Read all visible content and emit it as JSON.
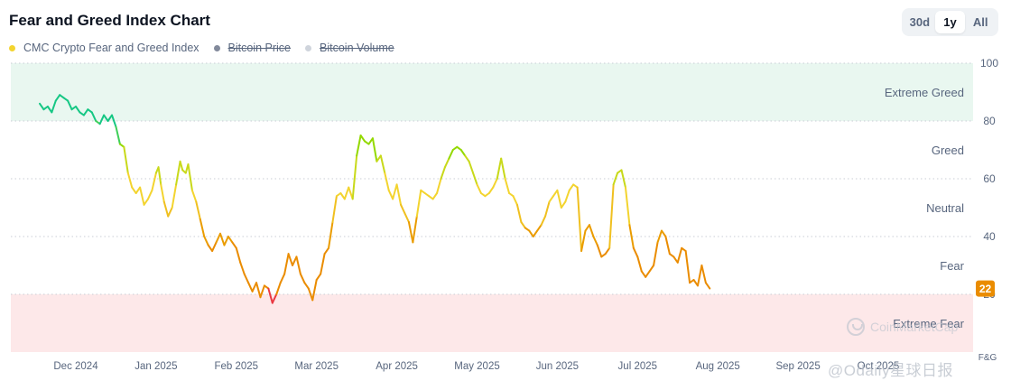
{
  "header": {
    "title": "Fear and Greed Index Chart",
    "ranges": [
      "30d",
      "1y",
      "All"
    ],
    "active_range": "1y"
  },
  "legend": [
    {
      "label": "CMC Crypto Fear and Greed Index",
      "color": "#f3d42f",
      "enabled": true
    },
    {
      "label": "Bitcoin Price",
      "color": "#828a9b",
      "enabled": false
    },
    {
      "label": "Bitcoin Volume",
      "color": "#cfd4dc",
      "enabled": false
    }
  ],
  "watermark": {
    "brand": "CoinMarketCap",
    "source": "@Odaily星球日报"
  },
  "chart_data": {
    "type": "line",
    "title": "Fear and Greed Index Chart",
    "x_ticks": [
      "Dec 2024",
      "Jan 2025",
      "Feb 2025",
      "Mar 2025",
      "Apr 2025",
      "May 2025",
      "Jun 2025",
      "Jul 2025",
      "Aug 2025",
      "Sep 2025",
      "Oct 2025"
    ],
    "y_ticks": [
      20,
      40,
      60,
      80,
      100
    ],
    "ylim": [
      0,
      100
    ],
    "y_axis_label": "F&G",
    "zones": [
      {
        "label": "Extreme Greed",
        "from": 80,
        "to": 100,
        "color": "#e9f7f0"
      },
      {
        "label": "Greed",
        "from": 60,
        "to": 80,
        "color": ""
      },
      {
        "label": "Neutral",
        "from": 40,
        "to": 60,
        "color": ""
      },
      {
        "label": "Fear",
        "from": 20,
        "to": 40,
        "color": ""
      },
      {
        "label": "Extreme Fear",
        "from": 0,
        "to": 20,
        "color": "#fde8e9"
      }
    ],
    "current_value": "22",
    "current_color": "#ea8c00",
    "series": [
      {
        "name": "CMC Crypto Fear and Greed Index",
        "points": [
          [
            -0.45,
            86
          ],
          [
            -0.4,
            84
          ],
          [
            -0.35,
            85
          ],
          [
            -0.3,
            83
          ],
          [
            -0.25,
            87
          ],
          [
            -0.2,
            89
          ],
          [
            -0.15,
            88
          ],
          [
            -0.1,
            87
          ],
          [
            -0.05,
            84
          ],
          [
            0.0,
            85
          ],
          [
            0.05,
            83
          ],
          [
            0.1,
            82
          ],
          [
            0.15,
            84
          ],
          [
            0.2,
            83
          ],
          [
            0.25,
            80
          ],
          [
            0.3,
            79
          ],
          [
            0.35,
            82
          ],
          [
            0.4,
            80
          ],
          [
            0.45,
            82
          ],
          [
            0.5,
            78
          ],
          [
            0.55,
            72
          ],
          [
            0.6,
            71
          ],
          [
            0.65,
            62
          ],
          [
            0.7,
            57
          ],
          [
            0.75,
            55
          ],
          [
            0.8,
            57
          ],
          [
            0.85,
            51
          ],
          [
            0.9,
            53
          ],
          [
            0.95,
            56
          ],
          [
            1.0,
            62
          ],
          [
            1.03,
            64
          ],
          [
            1.06,
            58
          ],
          [
            1.1,
            52
          ],
          [
            1.15,
            47
          ],
          [
            1.2,
            50
          ],
          [
            1.25,
            58
          ],
          [
            1.3,
            66
          ],
          [
            1.33,
            63
          ],
          [
            1.37,
            62
          ],
          [
            1.4,
            65
          ],
          [
            1.45,
            56
          ],
          [
            1.5,
            52
          ],
          [
            1.55,
            46
          ],
          [
            1.6,
            40
          ],
          [
            1.65,
            37
          ],
          [
            1.7,
            35
          ],
          [
            1.75,
            38
          ],
          [
            1.8,
            41
          ],
          [
            1.85,
            37
          ],
          [
            1.9,
            40
          ],
          [
            1.95,
            38
          ],
          [
            2.0,
            36
          ],
          [
            2.05,
            31
          ],
          [
            2.1,
            27
          ],
          [
            2.15,
            24
          ],
          [
            2.2,
            21
          ],
          [
            2.25,
            24
          ],
          [
            2.3,
            19
          ],
          [
            2.35,
            23
          ],
          [
            2.4,
            22
          ],
          [
            2.45,
            17
          ],
          [
            2.5,
            20
          ],
          [
            2.55,
            24
          ],
          [
            2.6,
            27
          ],
          [
            2.65,
            34
          ],
          [
            2.7,
            30
          ],
          [
            2.75,
            33
          ],
          [
            2.8,
            27
          ],
          [
            2.85,
            24
          ],
          [
            2.9,
            22
          ],
          [
            2.95,
            18
          ],
          [
            3.0,
            25
          ],
          [
            3.05,
            27
          ],
          [
            3.1,
            34
          ],
          [
            3.15,
            36
          ],
          [
            3.2,
            45
          ],
          [
            3.25,
            54
          ],
          [
            3.3,
            55
          ],
          [
            3.35,
            53
          ],
          [
            3.4,
            57
          ],
          [
            3.45,
            53
          ],
          [
            3.5,
            68
          ],
          [
            3.55,
            75
          ],
          [
            3.6,
            73
          ],
          [
            3.65,
            72
          ],
          [
            3.7,
            74
          ],
          [
            3.75,
            66
          ],
          [
            3.8,
            68
          ],
          [
            3.85,
            62
          ],
          [
            3.9,
            56
          ],
          [
            3.95,
            53
          ],
          [
            4.0,
            58
          ],
          [
            4.05,
            51
          ],
          [
            4.1,
            48
          ],
          [
            4.15,
            45
          ],
          [
            4.2,
            38
          ],
          [
            4.25,
            47
          ],
          [
            4.3,
            56
          ],
          [
            4.35,
            55
          ],
          [
            4.4,
            54
          ],
          [
            4.45,
            53
          ],
          [
            4.5,
            55
          ],
          [
            4.55,
            60
          ],
          [
            4.6,
            64
          ],
          [
            4.65,
            67
          ],
          [
            4.7,
            70
          ],
          [
            4.75,
            71
          ],
          [
            4.8,
            70
          ],
          [
            4.85,
            68
          ],
          [
            4.9,
            66
          ],
          [
            4.95,
            62
          ],
          [
            5.0,
            58
          ],
          [
            5.05,
            55
          ],
          [
            5.1,
            54
          ],
          [
            5.15,
            55
          ],
          [
            5.2,
            57
          ],
          [
            5.25,
            60
          ],
          [
            5.3,
            67
          ],
          [
            5.35,
            60
          ],
          [
            5.4,
            55
          ],
          [
            5.45,
            54
          ],
          [
            5.5,
            51
          ],
          [
            5.55,
            45
          ],
          [
            5.6,
            43
          ],
          [
            5.65,
            42
          ],
          [
            5.7,
            40
          ],
          [
            5.75,
            42
          ],
          [
            5.8,
            44
          ],
          [
            5.85,
            47
          ],
          [
            5.9,
            52
          ],
          [
            5.95,
            54
          ],
          [
            6.0,
            56
          ],
          [
            6.05,
            50
          ],
          [
            6.1,
            52
          ],
          [
            6.15,
            56
          ],
          [
            6.2,
            58
          ],
          [
            6.25,
            57
          ],
          [
            6.3,
            35
          ],
          [
            6.35,
            42
          ],
          [
            6.4,
            44
          ],
          [
            6.45,
            40
          ],
          [
            6.5,
            37
          ],
          [
            6.55,
            33
          ],
          [
            6.6,
            34
          ],
          [
            6.65,
            36
          ],
          [
            6.7,
            58
          ],
          [
            6.75,
            62
          ],
          [
            6.8,
            63
          ],
          [
            6.85,
            57
          ],
          [
            6.9,
            44
          ],
          [
            6.95,
            36
          ],
          [
            7.0,
            33
          ],
          [
            7.05,
            28
          ],
          [
            7.1,
            26
          ],
          [
            7.15,
            28
          ],
          [
            7.2,
            30
          ],
          [
            7.25,
            38
          ],
          [
            7.3,
            42
          ],
          [
            7.35,
            40
          ],
          [
            7.4,
            34
          ],
          [
            7.45,
            33
          ],
          [
            7.5,
            31
          ],
          [
            7.55,
            36
          ],
          [
            7.6,
            35
          ],
          [
            7.65,
            24
          ],
          [
            7.7,
            25
          ],
          [
            7.75,
            23
          ],
          [
            7.8,
            30
          ],
          [
            7.85,
            24
          ],
          [
            7.9,
            22
          ]
        ]
      }
    ]
  }
}
